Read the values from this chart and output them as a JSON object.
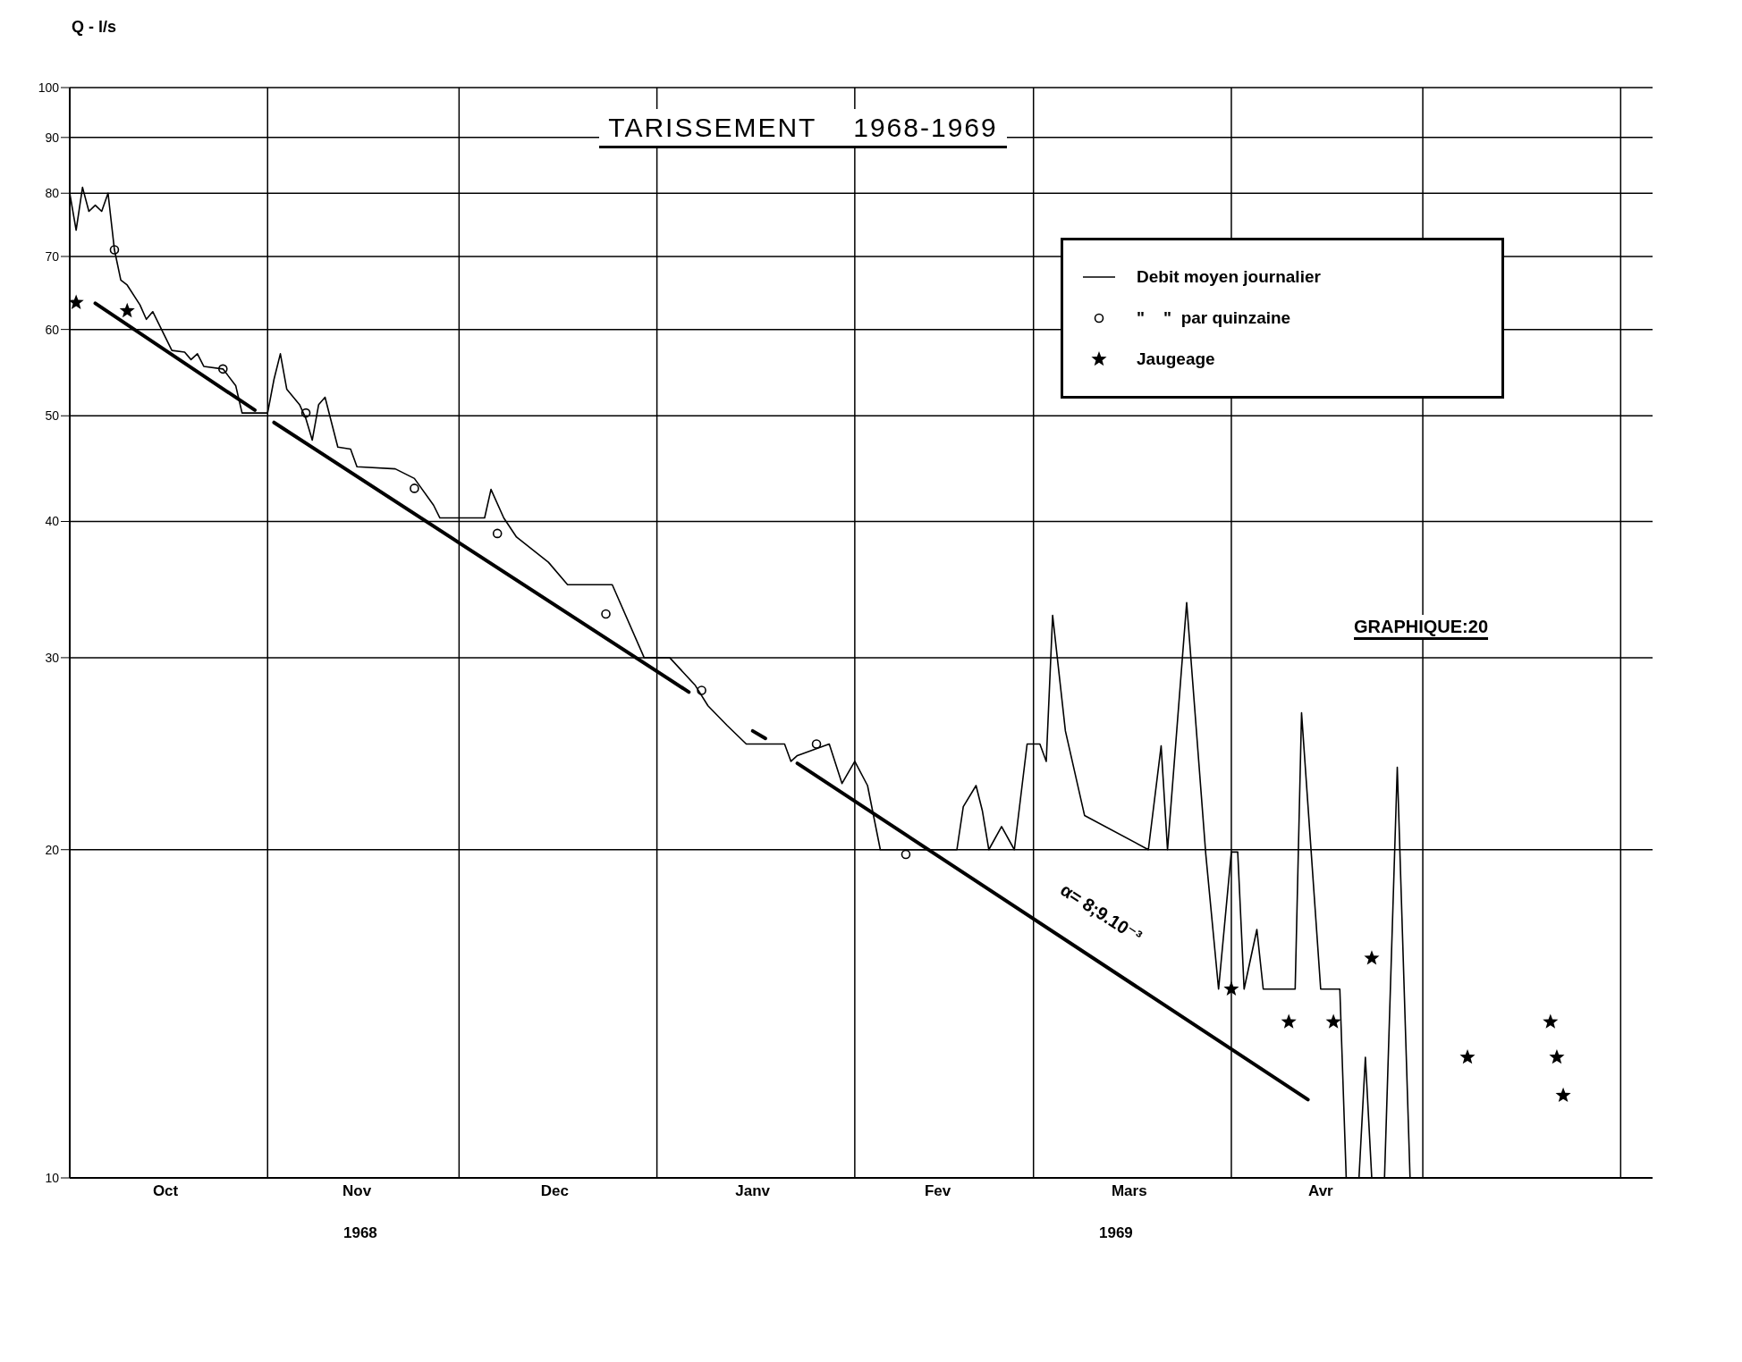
{
  "chart_data": {
    "type": "line",
    "title": "TARISSEMENT    1968-1969",
    "ylabel": "Q - l/s",
    "log": "y",
    "grid": "y",
    "legend": "top right",
    "ylim": [
      10,
      100
    ],
    "yticks": [
      10,
      20,
      30,
      40,
      50,
      60,
      70,
      80,
      90,
      100
    ],
    "xlim": [
      "1968-10-01",
      "1969-06-06"
    ],
    "xticks": [
      {
        "value": "1968-10-16",
        "label": "Oct"
      },
      {
        "value": "1968-11-15",
        "label": "Nov"
      },
      {
        "value": "1968-12-16",
        "label": "Dec"
      },
      {
        "value": "1969-01-16",
        "label": "Janv"
      },
      {
        "value": "1969-02-14",
        "label": "Fev"
      },
      {
        "value": "1969-03-16",
        "label": "Mars"
      },
      {
        "value": "1969-04-15",
        "label": "Avr"
      }
    ],
    "ref_lines": [
      {
        "axis": "x",
        "value": "1968-11-01"
      },
      {
        "axis": "x",
        "value": "1968-12-01"
      },
      {
        "axis": "x",
        "value": "1969-01-01"
      },
      {
        "axis": "x",
        "value": "1969-02-01"
      },
      {
        "axis": "x",
        "value": "1969-03-01"
      },
      {
        "axis": "x",
        "value": "1969-04-01"
      },
      {
        "axis": "x",
        "value": "1969-05-01"
      },
      {
        "axis": "x",
        "value": "1969-06-01"
      }
    ],
    "annotations": [
      "1968",
      "1969",
      "GRAPHIQUE:20",
      "α= 8;9.10⁻³"
    ],
    "series": [
      {
        "name": "Debit moyen journalier",
        "marker": "none",
        "color": "#000000",
        "x": [
          "1968-10-01",
          "1968-10-02",
          "1968-10-03",
          "1968-10-04",
          "1968-10-05",
          "1968-10-06",
          "1968-10-07",
          "1968-10-08",
          "1968-10-09",
          "1968-10-10",
          "1968-10-12",
          "1968-10-13",
          "1968-10-14",
          "1968-10-17",
          "1968-10-19",
          "1968-10-20",
          "1968-10-21",
          "1968-10-22",
          "1968-10-25",
          "1968-10-27",
          "1968-10-28",
          "1968-11-01",
          "1968-11-02",
          "1968-11-03",
          "1968-11-04",
          "1968-11-06",
          "1968-11-07",
          "1968-11-08",
          "1968-11-09",
          "1968-11-10",
          "1968-11-12",
          "1968-11-14",
          "1968-11-15",
          "1968-11-21",
          "1968-11-24",
          "1968-11-27",
          "1968-11-28",
          "1968-12-05",
          "1968-12-06",
          "1968-12-08",
          "1968-12-10",
          "1968-12-15",
          "1968-12-18",
          "1968-12-25",
          "1968-12-30",
          "1969-01-03",
          "1969-01-07",
          "1969-01-09",
          "1969-01-12",
          "1969-01-15",
          "1969-01-21",
          "1969-01-22",
          "1969-01-23",
          "1969-01-28",
          "1969-01-30",
          "1969-02-01",
          "1969-02-03",
          "1969-02-05",
          "1969-02-17",
          "1969-02-18",
          "1969-02-20",
          "1969-02-21",
          "1969-02-22",
          "1969-02-24",
          "1969-02-26",
          "1969-02-28",
          "1969-03-02",
          "1969-03-03",
          "1969-03-04",
          "1969-03-06",
          "1969-03-09",
          "1969-03-19",
          "1969-03-21",
          "1969-03-22",
          "1969-03-25",
          "1969-03-28",
          "1969-03-30",
          "1969-04-01",
          "1969-04-02",
          "1969-04-03",
          "1969-04-05",
          "1969-04-06",
          "1969-04-11",
          "1969-04-12",
          "1969-04-15",
          "1969-04-18",
          "1969-04-19",
          "1969-04-21",
          "1969-04-22",
          "1969-04-23",
          "1969-04-25",
          "1969-04-27",
          "1969-04-29"
        ],
        "values": [
          80,
          74,
          81,
          77,
          78,
          77,
          80,
          71,
          66.6,
          65.9,
          63.2,
          61.3,
          62.3,
          57.4,
          57.2,
          56.3,
          57,
          55.5,
          55.2,
          53.3,
          50.3,
          50.3,
          54,
          57,
          52.9,
          51.2,
          49.7,
          47.5,
          51.2,
          52,
          46.8,
          46.6,
          44.9,
          44.7,
          43.8,
          41.4,
          40.3,
          40.3,
          42.8,
          40.3,
          38.7,
          36.7,
          35,
          35,
          30,
          30,
          28.3,
          27.1,
          26,
          25,
          25,
          24.1,
          24.4,
          25,
          23,
          24.1,
          22.9,
          20,
          20,
          21.9,
          22.9,
          21.7,
          20,
          21,
          20,
          25,
          25,
          24.1,
          32.8,
          25.7,
          21.5,
          20,
          24.9,
          20,
          33.7,
          19.8,
          14.9,
          19.9,
          19.9,
          14.9,
          16.9,
          14.9,
          14.9,
          26.7,
          14.9,
          14.9,
          10,
          10,
          12.9,
          10,
          10,
          23.8,
          10
        ]
      },
      {
        "name": "\"    \"  par quinzaine",
        "type": "scatter",
        "marker": "circle",
        "color": "#000000",
        "x": [
          "1968-10-08",
          "1968-10-25",
          "1968-11-07",
          "1968-11-24",
          "1968-12-07",
          "1968-12-24",
          "1969-01-08",
          "1969-01-26",
          "1969-02-09"
        ],
        "values": [
          71,
          55.2,
          50.3,
          42.9,
          39,
          32.9,
          28,
          25,
          19.8
        ]
      },
      {
        "name": "Jaugeage",
        "type": "scatter",
        "marker": "star",
        "color": "#000000",
        "x": [
          "1968-10-02",
          "1968-10-10",
          "1969-04-01",
          "1969-04-10",
          "1969-04-17",
          "1969-04-23",
          "1969-05-08",
          "1969-05-21",
          "1969-05-22",
          "1969-05-23"
        ],
        "values": [
          63.5,
          62.4,
          14.9,
          13.9,
          13.9,
          15.9,
          12.9,
          13.9,
          12.9,
          11.9
        ]
      },
      {
        "marker": "none",
        "color": "#000000",
        "x": [
          "1968-10-05",
          "1968-10-30"
        ],
        "values": [
          63.4,
          50.6
        ]
      },
      {
        "marker": "none",
        "color": "#000000",
        "x": [
          "1968-11-02",
          "1969-01-06"
        ],
        "values": [
          49.3,
          27.9
        ]
      },
      {
        "marker": "none",
        "color": "#000000",
        "x": [
          "1969-01-16",
          "1969-01-18"
        ],
        "values": [
          25.7,
          25.3
        ]
      },
      {
        "marker": "none",
        "color": "#000000",
        "x": [
          "1969-01-23",
          "1969-04-13"
        ],
        "values": [
          24,
          11.8
        ]
      }
    ]
  }
}
